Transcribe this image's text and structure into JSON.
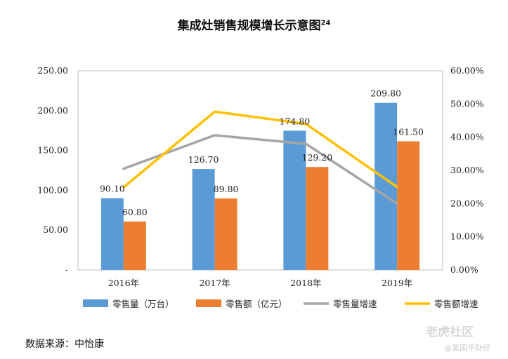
{
  "title": "集成灶销售规模增长示意图",
  "title_sup": "24",
  "source_note": "数据来源：中怡康",
  "watermark": {
    "main": "老虎社区",
    "sub": "@昊国平财经"
  },
  "chart_data": {
    "type": "bar",
    "categories": [
      "2016年",
      "2017年",
      "2018年",
      "2019年"
    ],
    "y_left": {
      "ylim": [
        0,
        250
      ],
      "ticks": [
        "-",
        "50.00",
        "100.00",
        "150.00",
        "200.00",
        "250.00"
      ]
    },
    "y_right": {
      "ylim": [
        0,
        60
      ],
      "ticks": [
        "0.00%",
        "10.00%",
        "20.00%",
        "30.00%",
        "40.00%",
        "50.00%",
        "60.00%"
      ]
    },
    "series": [
      {
        "name": "零售量（万台）",
        "type": "bar",
        "axis": "left",
        "color": "#5b9bd5",
        "values": [
          90.1,
          126.7,
          174.8,
          209.8
        ],
        "labels": [
          "90.10",
          "126.70",
          "174.80",
          "209.80"
        ]
      },
      {
        "name": "零售额（亿元）",
        "type": "bar",
        "axis": "left",
        "color": "#ed7d31",
        "values": [
          60.8,
          89.8,
          129.2,
          161.5
        ],
        "labels": [
          "60.80",
          "89.80",
          "129.20",
          "161.50"
        ]
      },
      {
        "name": "零售量增速",
        "type": "line",
        "axis": "right",
        "color": "#a5a5a5",
        "values": [
          30.5,
          40.6,
          38.0,
          20.0
        ]
      },
      {
        "name": "零售额增速",
        "type": "line",
        "axis": "right",
        "color": "#ffc000",
        "values": [
          24.9,
          47.7,
          44.0,
          25.0
        ]
      }
    ],
    "legend": "bottom",
    "grid": false
  }
}
